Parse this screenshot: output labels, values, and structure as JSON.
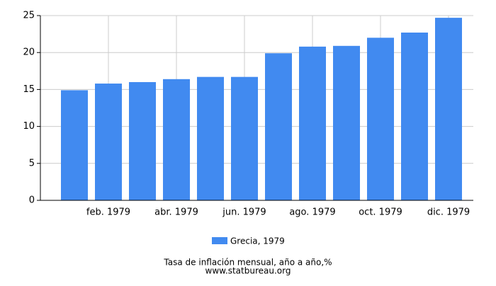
{
  "chart_data": {
    "type": "bar",
    "categories": [
      null,
      "feb. 1979",
      null,
      "abr. 1979",
      null,
      "jun. 1979",
      null,
      "ago. 1979",
      null,
      "oct. 1979",
      null,
      "dic. 1979"
    ],
    "series": [
      {
        "name": "Grecia, 1979",
        "color": "#418af0",
        "values": [
          14.9,
          15.8,
          16.0,
          16.4,
          16.7,
          16.7,
          19.9,
          20.8,
          20.9,
          22.0,
          22.7,
          24.7
        ]
      }
    ],
    "ylim": [
      0,
      25
    ],
    "yticks": [
      0,
      5,
      10,
      15,
      20,
      25
    ],
    "grid": true,
    "xlabel": "Tasa de inflación mensual, año a año,%",
    "source": "www.statbureau.org"
  }
}
